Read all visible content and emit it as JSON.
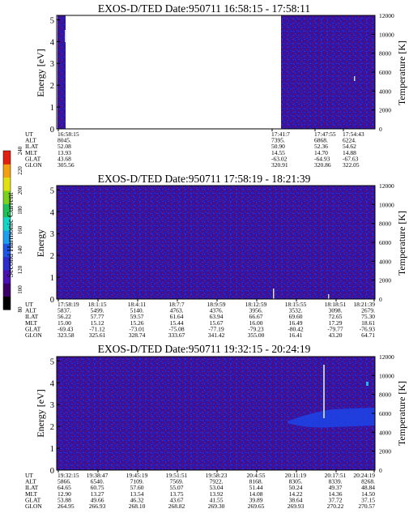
{
  "colorbar": {
    "label": "Second Harmonic Current",
    "ticks": [
      "80",
      "100",
      "120",
      "140",
      "160",
      "180",
      "200",
      "220",
      "240"
    ],
    "colors": [
      "#000000",
      "#3a0065",
      "#4a10b0",
      "#2c2ccf",
      "#1e56e6",
      "#1aa0ee",
      "#14d6c4",
      "#1ec05a",
      "#7ad21e",
      "#e0e014",
      "#f0a010",
      "#e02010"
    ]
  },
  "panels": [
    {
      "title": "EXOS-D/TED   Date:950711   16:58:15 - 17:58:11",
      "ylabel": "Energy [eV]",
      "y2label": "Temperature [K]",
      "yticks": [
        "0",
        "1",
        "2",
        "3",
        "4",
        "5"
      ],
      "y2ticks": [
        "0",
        "2000",
        "4000",
        "6000",
        "8000",
        "10000",
        "12000"
      ],
      "orbit_labels": [
        "UT",
        "ALT",
        "ILAT",
        "MLT",
        "GLAT",
        "GLON"
      ],
      "orbit_columns": [
        {
          "UT": "16:58:15",
          "ALT": "8045.",
          "ILAT": "52.08",
          "MLT": "13.93",
          "GLAT": "43.68",
          "GLON": "305.56"
        },
        {
          "UT": "17:41:7",
          "ALT": "7395.",
          "ILAT": "50.90",
          "MLT": "14.55",
          "GLAT": "-63.02",
          "GLON": "320.91"
        },
        {
          "UT": "17:47:55",
          "ALT": "6868.",
          "ILAT": "52.36",
          "MLT": "14.70",
          "GLAT": "-64.93",
          "GLON": "320.86"
        },
        {
          "UT": "17:54:43",
          "ALT": "6224.",
          "ILAT": "54.62",
          "MLT": "14.88",
          "GLAT": "-67.63",
          "GLON": "322.05"
        }
      ]
    },
    {
      "title": "EXOS-D/TED   Date:950711   17:58:19 - 18:21:39",
      "ylabel": "Energy",
      "y2label": "Temperature [K]",
      "yticks": [
        "0",
        "1",
        "2",
        "3",
        "4",
        "5"
      ],
      "y2ticks": [
        "0",
        "2000",
        "4000",
        "6000",
        "8000",
        "10000",
        "12000"
      ],
      "orbit_labels": [
        "UT",
        "ALT",
        "ILAT",
        "MLT",
        "GLAT",
        "GLON"
      ],
      "orbit_columns": [
        {
          "UT": "17:58:19",
          "ALT": "5837.",
          "ILAT": "56.22",
          "MLT": "15.00",
          "GLAT": "-69.43",
          "GLON": "323.58"
        },
        {
          "UT": "18:1:15",
          "ALT": "5499.",
          "ILAT": "57.77",
          "MLT": "15.12",
          "GLAT": "-71.12",
          "GLON": "325.61"
        },
        {
          "UT": "18:4:11",
          "ALT": "5140.",
          "ILAT": "59.57",
          "MLT": "15.26",
          "GLAT": "-73.01",
          "GLON": "328.74"
        },
        {
          "UT": "18:7:7",
          "ALT": "4763.",
          "ILAT": "61.64",
          "MLT": "15.44",
          "GLAT": "-75.08",
          "GLON": "333.67"
        },
        {
          "UT": "18:9:59",
          "ALT": "4376.",
          "ILAT": "63.94",
          "MLT": "15.67",
          "GLAT": "-77.19",
          "GLON": "341.42"
        },
        {
          "UT": "18:12:59",
          "ALT": "3956.",
          "ILAT": "66.67",
          "MLT": "16.00",
          "GLAT": "-79.23",
          "GLON": "355.00"
        },
        {
          "UT": "18:15:55",
          "ALT": "3532.",
          "ILAT": "69.60",
          "MLT": "16.49",
          "GLAT": "-80.42",
          "GLON": "16.41"
        },
        {
          "UT": "18:18:51",
          "ALT": "3098.",
          "ILAT": "72.65",
          "MLT": "17.29",
          "GLAT": "-79.77",
          "GLON": "43.20"
        },
        {
          "UT": "18:21:39",
          "ALT": "2679.",
          "ILAT": "75.30",
          "MLT": "18.61",
          "GLAT": "-76.93",
          "GLON": "64.71"
        }
      ]
    },
    {
      "title": "EXOS-D/TED   Date:950711   19:32:15 - 20:24:19",
      "ylabel": "Energy [eV]",
      "y2label": "Temperature [K]",
      "yticks": [
        "0",
        "1",
        "2",
        "3",
        "4",
        "5"
      ],
      "y2ticks": [
        "0",
        "2000",
        "4000",
        "6000",
        "8000",
        "10000",
        "12000"
      ],
      "orbit_labels": [
        "UT",
        "ALT",
        "ILAT",
        "MLT",
        "GLAT",
        "GLON"
      ],
      "orbit_columns": [
        {
          "UT": "19:32:15",
          "ALT": "5866.",
          "ILAT": "64.65",
          "MLT": "12.90",
          "GLAT": "53.88",
          "GLON": "264.95"
        },
        {
          "UT": "19:38:47",
          "ALT": "6540.",
          "ILAT": "60.75",
          "MLT": "13.27",
          "GLAT": "49.66",
          "GLON": "266.93"
        },
        {
          "UT": "19:45:19",
          "ALT": "7109.",
          "ILAT": "57.60",
          "MLT": "13.54",
          "GLAT": "46.32",
          "GLON": "268.10"
        },
        {
          "UT": "19:51:51",
          "ALT": "7569.",
          "ILAT": "55.07",
          "MLT": "13.75",
          "GLAT": "43.67",
          "GLON": "268.82"
        },
        {
          "UT": "19:58:23",
          "ALT": "7922.",
          "ILAT": "53.04",
          "MLT": "13.92",
          "GLAT": "41.55",
          "GLON": "269.30"
        },
        {
          "UT": "20:4:55",
          "ALT": "8168.",
          "ILAT": "51.44",
          "MLT": "14.08",
          "GLAT": "39.89",
          "GLON": "269.65"
        },
        {
          "UT": "20:11:19",
          "ALT": "8305.",
          "ILAT": "50.24",
          "MLT": "14.22",
          "GLAT": "38.64",
          "GLON": "269.93"
        },
        {
          "UT": "20:17:51",
          "ALT": "8339.",
          "ILAT": "49.37",
          "MLT": "14.36",
          "GLAT": "37.72",
          "GLON": "270.22"
        },
        {
          "UT": "20:24:19",
          "ALT": "8268.",
          "ILAT": "48.84",
          "MLT": "14.50",
          "GLAT": "37.15",
          "GLON": "270.57"
        }
      ]
    }
  ],
  "chart_data": [
    {
      "type": "heatmap",
      "title": "EXOS-D/TED   Date:950711   16:58:15 - 17:58:11",
      "ylabel": "Energy [eV]",
      "y2label": "Temperature [K]",
      "ylim": [
        0,
        5.2
      ],
      "y2lim": [
        0,
        12000
      ],
      "x": [
        "16:58:15",
        "17:41:7",
        "17:47:55",
        "17:54:43"
      ],
      "data_gap": [
        "16:59:30",
        "17:41:7"
      ],
      "background": "dark blue/purple (about 100-140)",
      "features": [
        {
          "kind": "light streak",
          "at": "16:59",
          "energy_range": [
            4.1,
            4.7
          ]
        },
        {
          "kind": "light streak",
          "at": "17:56",
          "energy_range": [
            2.1,
            2.3
          ]
        }
      ]
    },
    {
      "type": "heatmap",
      "title": "EXOS-D/TED   Date:950711   17:58:19 - 18:21:39",
      "ylabel": "Energy",
      "y2label": "Temperature [K]",
      "ylim": [
        0,
        5.2
      ],
      "y2lim": [
        0,
        12000
      ],
      "x": [
        "17:58:19",
        "18:1:15",
        "18:4:11",
        "18:7:7",
        "18:9:59",
        "18:12:59",
        "18:15:55",
        "18:18:51",
        "18:21:39"
      ],
      "background": "dark blue/purple (about 100-140)",
      "features": [
        {
          "kind": "light streak",
          "at": "18:15:30",
          "energy_range": [
            0,
            0.5
          ]
        },
        {
          "kind": "light streak",
          "at": "18:18:40",
          "energy_range": [
            0,
            0.2
          ]
        }
      ]
    },
    {
      "type": "heatmap",
      "title": "EXOS-D/TED   Date:950711   19:32:15 - 20:24:19",
      "ylabel": "Energy [eV]",
      "y2label": "Temperature [K]",
      "ylim": [
        0,
        5.2
      ],
      "y2lim": [
        0,
        12000
      ],
      "x": [
        "19:32:15",
        "19:38:47",
        "19:45:19",
        "19:51:51",
        "19:58:23",
        "20:4:55",
        "20:11:19",
        "20:17:51",
        "20:24:19"
      ],
      "background": "dark blue/purple (about 100-140)",
      "features": [
        {
          "kind": "brighter blue band",
          "time_range": [
            "20:06",
            "20:24:19"
          ],
          "energy_range": [
            1.6,
            2.4
          ]
        },
        {
          "kind": "light streak",
          "at": "20:17:50",
          "energy_range": [
            2.3,
            5.0
          ]
        },
        {
          "kind": "cyan spot",
          "at": "20:24",
          "energy": 4.0
        }
      ]
    }
  ]
}
